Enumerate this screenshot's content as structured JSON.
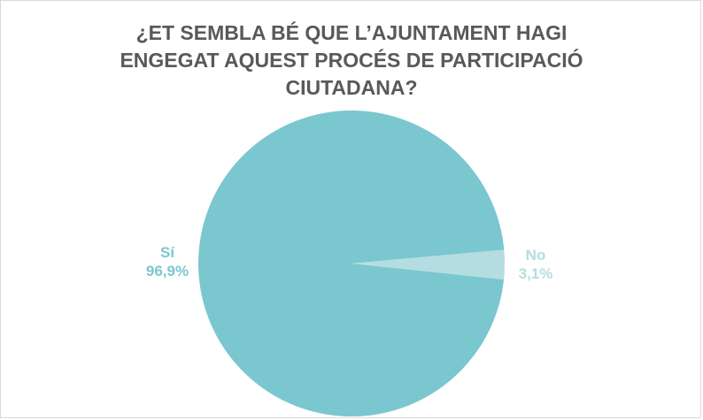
{
  "chart_data": {
    "type": "pie",
    "title": "¿ET SEMBLA BÉ QUE L’AJUNTAMENT HAGI ENGEGAT AQUEST PROCÉS DE PARTICIPACIÓ CIUTADANA?",
    "categories": [
      "Sí",
      "No"
    ],
    "values": [
      96.9,
      3.1
    ],
    "value_labels": [
      "96,9%",
      "3,1%"
    ],
    "colors": [
      "#7ac7cf",
      "#b4dde1"
    ]
  }
}
